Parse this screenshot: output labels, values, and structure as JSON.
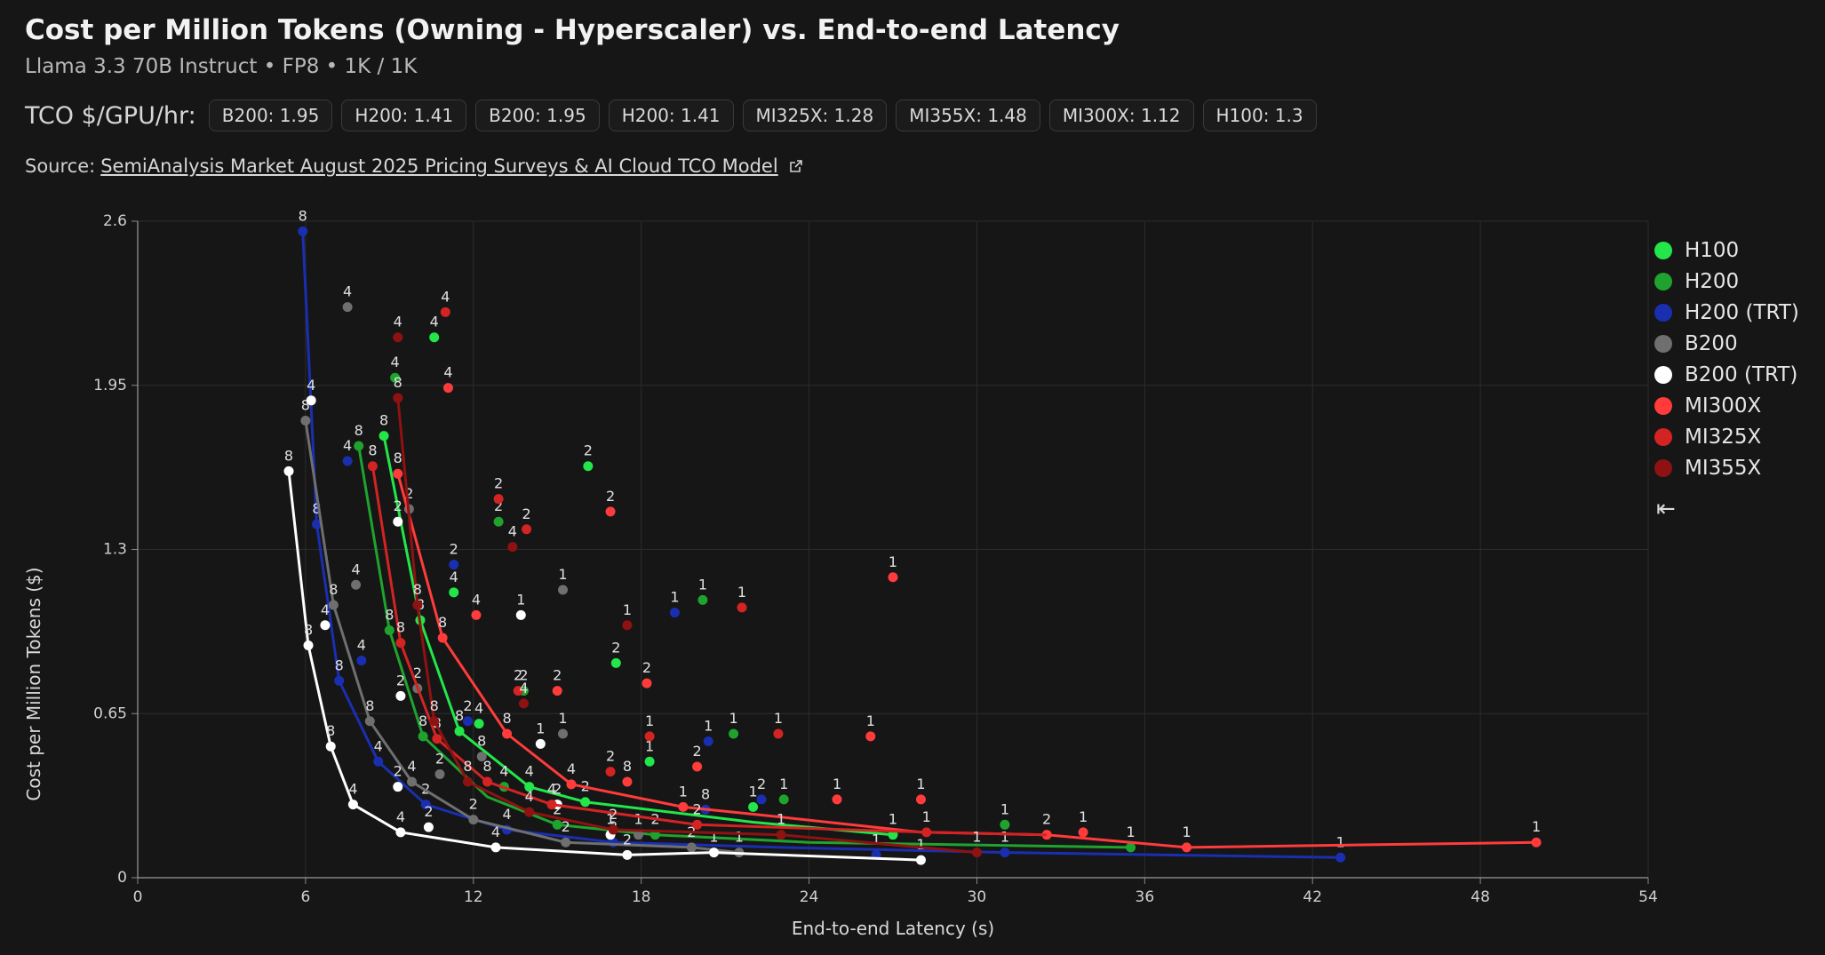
{
  "header": {
    "title": "Cost per Million Tokens (Owning - Hyperscaler) vs. End-to-end Latency",
    "subtitle": "Llama 3.3 70B Instruct • FP8 • 1K / 1K",
    "tco_label": "TCO $/GPU/hr:",
    "tco_chips": [
      "B200: 1.95",
      "H200: 1.41",
      "B200: 1.95",
      "H200: 1.41",
      "MI325X: 1.28",
      "MI355X: 1.48",
      "MI300X: 1.12",
      "H100: 1.3"
    ],
    "source_prefix": "Source:",
    "source_link": "SemiAnalysis Market August 2025 Pricing Surveys & AI Cloud TCO Model",
    "external_link_icon": "external-link-icon",
    "collapse_icon": "collapse-left-icon"
  },
  "chart_data": {
    "type": "scatter",
    "xlabel": "End-to-end Latency (s)",
    "ylabel": "Cost per Million Tokens ($)",
    "xlim": [
      0,
      54
    ],
    "ylim": [
      0,
      2.6
    ],
    "xticks": [
      0,
      6,
      12,
      18,
      24,
      30,
      36,
      42,
      48,
      54
    ],
    "yticks": [
      0,
      0.65,
      1.3,
      1.95,
      2.6
    ],
    "grid": true,
    "legend_position": "right",
    "series": [
      {
        "name": "H100",
        "color": "#22e64a",
        "frontier": [
          [
            8.8,
            1.75
          ],
          [
            10.1,
            1.02
          ],
          [
            11.5,
            0.58
          ],
          [
            14.0,
            0.36
          ],
          [
            16.0,
            0.3
          ],
          [
            22.0,
            0.22
          ],
          [
            27.0,
            0.17
          ]
        ],
        "points": [
          [
            10.6,
            2.14,
            "4"
          ],
          [
            8.8,
            1.75,
            "8"
          ],
          [
            16.1,
            1.63,
            "2"
          ],
          [
            11.3,
            1.13,
            "4"
          ],
          [
            10.1,
            1.02,
            "8"
          ],
          [
            17.1,
            0.85,
            "2"
          ],
          [
            11.5,
            0.58,
            "8"
          ],
          [
            12.2,
            0.61,
            "4"
          ],
          [
            18.3,
            0.46,
            "1"
          ],
          [
            14.0,
            0.36,
            "4"
          ],
          [
            16.0,
            0.3,
            "2"
          ],
          [
            22.0,
            0.28,
            "1"
          ],
          [
            27.0,
            0.17,
            "1"
          ]
        ]
      },
      {
        "name": "H200",
        "color": "#1fa32e",
        "frontier": [
          [
            7.9,
            1.71
          ],
          [
            9.0,
            0.98
          ],
          [
            10.2,
            0.56
          ],
          [
            12.5,
            0.32
          ],
          [
            15.0,
            0.21
          ],
          [
            18.5,
            0.17
          ],
          [
            24.0,
            0.14
          ],
          [
            35.5,
            0.12
          ]
        ],
        "points": [
          [
            9.2,
            1.98,
            "4"
          ],
          [
            7.9,
            1.71,
            "8"
          ],
          [
            12.9,
            1.41,
            "2"
          ],
          [
            9.0,
            0.98,
            "8"
          ],
          [
            20.2,
            1.1,
            "1"
          ],
          [
            13.8,
            0.74,
            "2"
          ],
          [
            10.2,
            0.56,
            "8"
          ],
          [
            21.3,
            0.57,
            "1"
          ],
          [
            13.1,
            0.36,
            "4"
          ],
          [
            15.0,
            0.21,
            "2"
          ],
          [
            23.1,
            0.31,
            "1"
          ],
          [
            18.5,
            0.17,
            "2"
          ],
          [
            31.0,
            0.21,
            "1"
          ],
          [
            35.5,
            0.12,
            "1"
          ]
        ]
      },
      {
        "name": "H200 (TRT)",
        "color": "#1a2fb0",
        "frontier": [
          [
            5.9,
            2.56
          ],
          [
            6.4,
            1.4
          ],
          [
            7.2,
            0.78
          ],
          [
            8.6,
            0.46
          ],
          [
            10.3,
            0.29
          ],
          [
            13.2,
            0.19
          ],
          [
            17.0,
            0.14
          ],
          [
            23.0,
            0.12
          ],
          [
            31.0,
            0.1
          ],
          [
            43.0,
            0.08
          ]
        ],
        "points": [
          [
            5.9,
            2.56,
            "8"
          ],
          [
            7.5,
            1.65,
            "4"
          ],
          [
            6.4,
            1.4,
            "8"
          ],
          [
            11.3,
            1.24,
            "2"
          ],
          [
            8.0,
            0.86,
            "4"
          ],
          [
            19.2,
            1.05,
            "1"
          ],
          [
            7.2,
            0.78,
            "8"
          ],
          [
            11.8,
            0.62,
            "2"
          ],
          [
            8.6,
            0.46,
            "4"
          ],
          [
            20.4,
            0.54,
            "1"
          ],
          [
            10.3,
            0.29,
            "2"
          ],
          [
            13.2,
            0.19,
            "4"
          ],
          [
            17.0,
            0.14,
            "2"
          ],
          [
            20.3,
            0.27,
            "8"
          ],
          [
            22.3,
            0.31,
            "2"
          ],
          [
            26.4,
            0.09,
            "1"
          ],
          [
            31.0,
            0.1,
            "1"
          ],
          [
            43.0,
            0.08,
            "1"
          ]
        ]
      },
      {
        "name": "B200",
        "color": "#6f6f6f",
        "frontier": [
          [
            6.0,
            1.81
          ],
          [
            7.0,
            1.08
          ],
          [
            8.3,
            0.62
          ],
          [
            9.8,
            0.38
          ],
          [
            12.0,
            0.23
          ],
          [
            15.3,
            0.14
          ],
          [
            19.8,
            0.12
          ],
          [
            21.5,
            0.1
          ]
        ],
        "points": [
          [
            7.5,
            2.26,
            "4"
          ],
          [
            6.0,
            1.81,
            "8"
          ],
          [
            9.7,
            1.46,
            "2"
          ],
          [
            7.8,
            1.16,
            "4"
          ],
          [
            7.0,
            1.08,
            "8"
          ],
          [
            15.2,
            1.14,
            "1"
          ],
          [
            10.0,
            0.75,
            "2"
          ],
          [
            8.3,
            0.62,
            "8"
          ],
          [
            15.2,
            0.57,
            "1"
          ],
          [
            9.8,
            0.38,
            "4"
          ],
          [
            10.8,
            0.41,
            "2"
          ],
          [
            12.3,
            0.48,
            "8"
          ],
          [
            12.0,
            0.23,
            "2"
          ],
          [
            15.3,
            0.14,
            "2"
          ],
          [
            17.9,
            0.17,
            "1"
          ],
          [
            19.8,
            0.12,
            "2"
          ],
          [
            21.5,
            0.1,
            "1"
          ]
        ]
      },
      {
        "name": "B200 (TRT)",
        "color": "#ffffff",
        "frontier": [
          [
            5.4,
            1.61
          ],
          [
            6.1,
            0.92
          ],
          [
            6.9,
            0.52
          ],
          [
            7.7,
            0.29
          ],
          [
            9.4,
            0.18
          ],
          [
            12.8,
            0.12
          ],
          [
            17.5,
            0.09
          ],
          [
            20.6,
            0.1
          ],
          [
            28.0,
            0.07
          ]
        ],
        "points": [
          [
            6.2,
            1.89,
            "4"
          ],
          [
            5.4,
            1.61,
            "8"
          ],
          [
            9.3,
            1.41,
            "2"
          ],
          [
            6.7,
            1.0,
            "4"
          ],
          [
            13.7,
            1.04,
            "1"
          ],
          [
            6.1,
            0.92,
            "8"
          ],
          [
            9.4,
            0.72,
            "2"
          ],
          [
            14.4,
            0.53,
            "1"
          ],
          [
            6.9,
            0.52,
            "8"
          ],
          [
            9.3,
            0.36,
            "2"
          ],
          [
            7.7,
            0.29,
            "4"
          ],
          [
            9.4,
            0.18,
            "4"
          ],
          [
            10.4,
            0.2,
            "2"
          ],
          [
            12.8,
            0.12,
            "4"
          ],
          [
            15.0,
            0.29,
            "2"
          ],
          [
            16.9,
            0.17,
            "1"
          ],
          [
            17.5,
            0.09,
            "2"
          ],
          [
            20.6,
            0.1,
            "1"
          ],
          [
            28.0,
            0.07,
            "1"
          ]
        ]
      },
      {
        "name": "MI300X",
        "color": "#ff3b3b",
        "frontier": [
          [
            9.3,
            1.6
          ],
          [
            10.9,
            0.95
          ],
          [
            13.2,
            0.57
          ],
          [
            15.5,
            0.37
          ],
          [
            19.5,
            0.28
          ],
          [
            23.0,
            0.24
          ],
          [
            28.0,
            0.18
          ],
          [
            32.5,
            0.17
          ],
          [
            37.5,
            0.12
          ],
          [
            50.0,
            0.14
          ]
        ],
        "points": [
          [
            9.3,
            1.6,
            "8"
          ],
          [
            11.1,
            1.94,
            "4"
          ],
          [
            16.9,
            1.45,
            "2"
          ],
          [
            10.9,
            0.95,
            "8"
          ],
          [
            12.1,
            1.04,
            "4"
          ],
          [
            18.2,
            0.77,
            "2"
          ],
          [
            13.2,
            0.57,
            "8"
          ],
          [
            15.0,
            0.74,
            "2"
          ],
          [
            20.0,
            0.44,
            "2"
          ],
          [
            26.2,
            0.56,
            "1"
          ],
          [
            15.5,
            0.37,
            "4"
          ],
          [
            17.5,
            0.38,
            "8"
          ],
          [
            19.5,
            0.28,
            "1"
          ],
          [
            25.0,
            0.31,
            "1"
          ],
          [
            28.0,
            0.31,
            "1"
          ],
          [
            32.5,
            0.17,
            "2"
          ],
          [
            33.8,
            0.18,
            "1"
          ],
          [
            37.5,
            0.12,
            "1"
          ],
          [
            50.0,
            0.14,
            "1"
          ],
          [
            27.0,
            1.19,
            "1"
          ]
        ]
      },
      {
        "name": "MI325X",
        "color": "#d42323",
        "frontier": [
          [
            8.4,
            1.63
          ],
          [
            9.4,
            0.93
          ],
          [
            10.7,
            0.55
          ],
          [
            12.5,
            0.38
          ],
          [
            14.8,
            0.29
          ],
          [
            20.0,
            0.21
          ],
          [
            28.2,
            0.18
          ],
          [
            32.5,
            0.17
          ]
        ],
        "points": [
          [
            11.0,
            2.24,
            "4"
          ],
          [
            8.4,
            1.63,
            "8"
          ],
          [
            12.9,
            1.5,
            "2"
          ],
          [
            13.9,
            1.38,
            "2"
          ],
          [
            9.4,
            0.93,
            "8"
          ],
          [
            21.6,
            1.07,
            "1"
          ],
          [
            13.6,
            0.74,
            "2"
          ],
          [
            18.3,
            0.56,
            "1"
          ],
          [
            10.7,
            0.55,
            "8"
          ],
          [
            12.5,
            0.38,
            "8"
          ],
          [
            16.9,
            0.42,
            "2"
          ],
          [
            22.9,
            0.57,
            "1"
          ],
          [
            14.8,
            0.29,
            "4"
          ],
          [
            20.0,
            0.21,
            "2"
          ],
          [
            28.2,
            0.18,
            "1"
          ]
        ]
      },
      {
        "name": "MI355X",
        "color": "#8f1212",
        "frontier": [
          [
            9.3,
            1.9
          ],
          [
            10.0,
            1.08
          ],
          [
            10.6,
            0.62
          ],
          [
            11.8,
            0.38
          ],
          [
            14.0,
            0.26
          ],
          [
            17.0,
            0.19
          ],
          [
            23.0,
            0.17
          ],
          [
            30.0,
            0.1
          ]
        ],
        "points": [
          [
            9.3,
            2.14,
            "4"
          ],
          [
            9.3,
            1.9,
            "8"
          ],
          [
            13.4,
            1.31,
            "4"
          ],
          [
            10.0,
            1.08,
            "8"
          ],
          [
            17.5,
            1.0,
            "1"
          ],
          [
            13.8,
            0.69,
            "4"
          ],
          [
            10.6,
            0.62,
            "8"
          ],
          [
            11.8,
            0.38,
            "8"
          ],
          [
            14.0,
            0.26,
            "4"
          ],
          [
            17.0,
            0.19,
            "2"
          ],
          [
            23.0,
            0.17,
            "1"
          ],
          [
            30.0,
            0.1,
            "1"
          ]
        ]
      }
    ]
  }
}
